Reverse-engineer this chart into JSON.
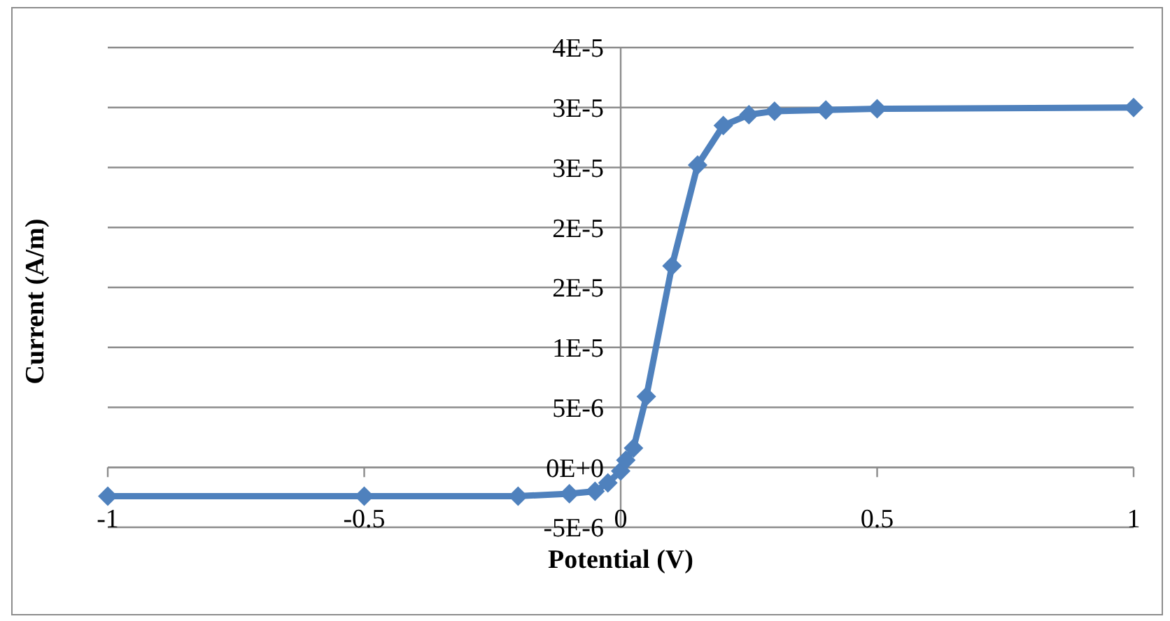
{
  "chart_data": {
    "type": "line",
    "xlabel": "Potential (V)",
    "ylabel": "Current (A/m)",
    "x": [
      -1,
      -0.5,
      -0.2,
      -0.1,
      -0.05,
      -0.025,
      0,
      0.01,
      0.025,
      0.05,
      0.1,
      0.15,
      0.2,
      0.25,
      0.3,
      0.4,
      0.5,
      1
    ],
    "series": [
      {
        "color": "#4f81bd",
        "values": [
          -2.4e-06,
          -2.4e-06,
          -2.4e-06,
          -2.2e-06,
          -2e-06,
          -1.3e-06,
          -3e-07,
          6e-07,
          1.6e-06,
          5.9e-06,
          1.68e-05,
          2.52e-05,
          2.85e-05,
          2.94e-05,
          2.97e-05,
          2.98e-05,
          2.99e-05,
          3e-05
        ]
      }
    ],
    "xlim": [
      -1,
      1
    ],
    "xticks": [
      -1,
      -0.5,
      0,
      0.5,
      1
    ],
    "ylim": [
      -5e-06,
      3.5e-05
    ],
    "yticks": [
      {
        "value": -5e-06,
        "label": "-5E-6"
      },
      {
        "value": 0,
        "label": "0E+0"
      },
      {
        "value": 5e-06,
        "label": "5E-6"
      },
      {
        "value": 1e-05,
        "label": "1E-5"
      },
      {
        "value": 1.5e-05,
        "label": "2E-5"
      },
      {
        "value": 2e-05,
        "label": "2E-5"
      },
      {
        "value": 2.5e-05,
        "label": "3E-5"
      },
      {
        "value": 3e-05,
        "label": "3E-5"
      },
      {
        "value": 3.5e-05,
        "label": "4E-5"
      }
    ],
    "grid": "y",
    "marker": "diamond",
    "line_style": "solid"
  }
}
